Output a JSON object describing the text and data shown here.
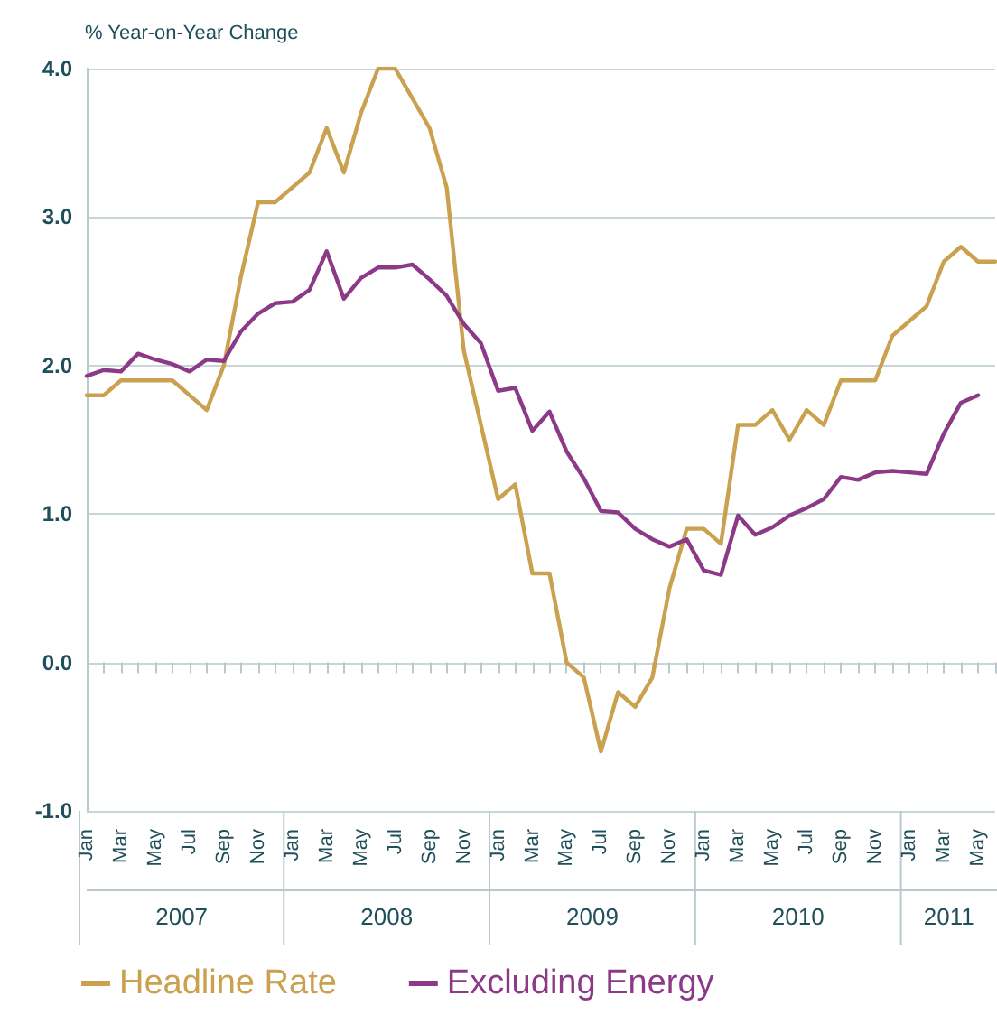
{
  "chart_data": {
    "type": "line",
    "ylabel": "% Year-on-Year Change",
    "categories": [
      "Jan",
      null,
      "Mar",
      null,
      "May",
      null,
      "Jul",
      null,
      "Sep",
      null,
      "Nov",
      null,
      "Jan",
      null,
      "Mar",
      null,
      "May",
      null,
      "Jul",
      null,
      "Sep",
      null,
      "Nov",
      null,
      "Jan",
      null,
      "Mar",
      null,
      "May",
      null,
      "Jul",
      null,
      "Sep",
      null,
      "Nov",
      null,
      "Jan",
      null,
      "Mar",
      null,
      "May",
      null,
      "Jul",
      null,
      "Sep",
      null,
      "Nov",
      null,
      "Jan",
      null,
      "Mar",
      null,
      "May",
      null
    ],
    "series": [
      {
        "name": "Headline Rate",
        "color": "#c9a14f",
        "values": [
          1.8,
          1.8,
          1.9,
          1.9,
          1.9,
          1.9,
          1.8,
          1.7,
          2.0,
          2.6,
          3.1,
          3.1,
          3.2,
          3.3,
          3.6,
          3.3,
          3.7,
          4.0,
          4.0,
          3.8,
          3.6,
          3.2,
          2.1,
          1.6,
          1.1,
          1.2,
          0.6,
          0.6,
          0.0,
          -0.1,
          -0.6,
          -0.2,
          -0.3,
          -0.1,
          0.5,
          0.9,
          0.9,
          0.8,
          1.6,
          1.6,
          1.7,
          1.5,
          1.7,
          1.6,
          1.9,
          1.9,
          1.9,
          2.2,
          2.3,
          2.4,
          2.7,
          2.8,
          2.7,
          2.7
        ]
      },
      {
        "name": "Excluding Energy",
        "color": "#8c3a88",
        "values": [
          1.93,
          1.97,
          1.96,
          2.08,
          2.04,
          2.01,
          1.96,
          2.04,
          2.03,
          2.23,
          2.35,
          2.42,
          2.43,
          2.51,
          2.77,
          2.45,
          2.59,
          2.66,
          2.66,
          2.68,
          2.58,
          2.47,
          2.28,
          2.15,
          1.83,
          1.85,
          1.56,
          1.69,
          1.42,
          1.24,
          1.02,
          1.01,
          0.9,
          0.83,
          0.78,
          0.83,
          0.62,
          0.59,
          0.99,
          0.86,
          0.91,
          0.99,
          1.04,
          1.1,
          1.25,
          1.23,
          1.28,
          1.29,
          1.28,
          1.27,
          1.54,
          1.75,
          1.8,
          null
        ]
      }
    ],
    "ylim": [
      -1,
      4
    ],
    "yticks": [
      {
        "value": -1,
        "label": "-1.0"
      },
      {
        "value": 0,
        "label": "0.0"
      },
      {
        "value": 1,
        "label": "1.0"
      },
      {
        "value": 2,
        "label": "2.0"
      },
      {
        "value": 3,
        "label": "3.0"
      },
      {
        "value": 4,
        "label": "4.0"
      }
    ],
    "annotations": [
      "2007",
      "2008",
      "2009",
      "2010",
      "2011"
    ],
    "grid": "y",
    "legend": "bottom left",
    "marker": "none",
    "line_style": "solid"
  }
}
